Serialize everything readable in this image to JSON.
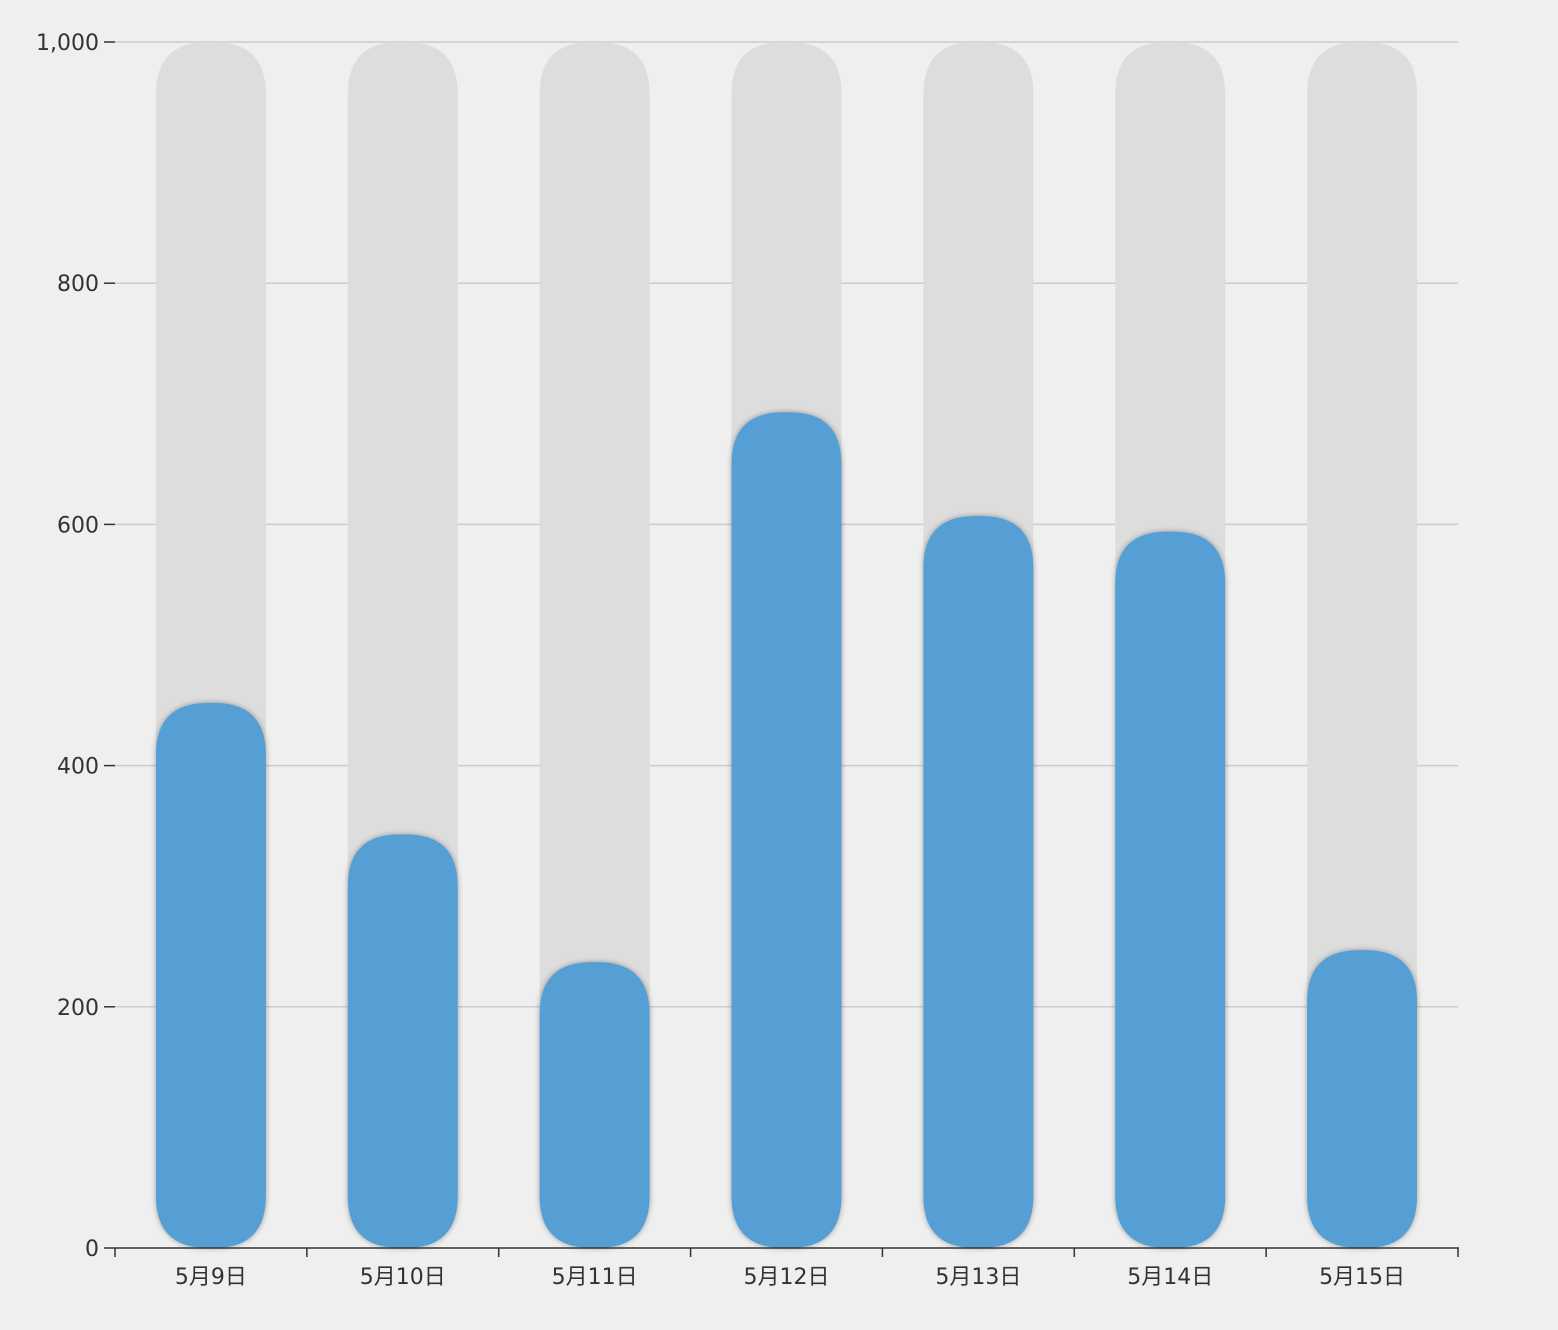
{
  "chart_data": {
    "type": "bar",
    "title": "",
    "xlabel": "",
    "ylabel": "",
    "categories": [
      "5月9日",
      "5月10日",
      "5月11日",
      "5月12日",
      "5月13日",
      "5月14日",
      "5月15日"
    ],
    "series": [
      {
        "values": [
          452,
          343,
          237,
          693,
          607,
          594,
          247
        ]
      }
    ],
    "background_values": [
      1000,
      1000,
      1000,
      1000,
      1000,
      1000,
      1000
    ],
    "ylim": [
      0,
      1000
    ],
    "yticks": [
      0,
      200,
      400,
      600,
      800,
      1000
    ],
    "ytick_labels": [
      "0",
      "200",
      "400",
      "600",
      "800",
      "1,000"
    ],
    "grid": true,
    "legend": "none",
    "colors": {
      "bar": "#559fd5",
      "background_bar": "#dddddd",
      "grid": "#cccccc",
      "axis": "#333333",
      "text": "#333333",
      "page_background": "#efefef"
    }
  }
}
